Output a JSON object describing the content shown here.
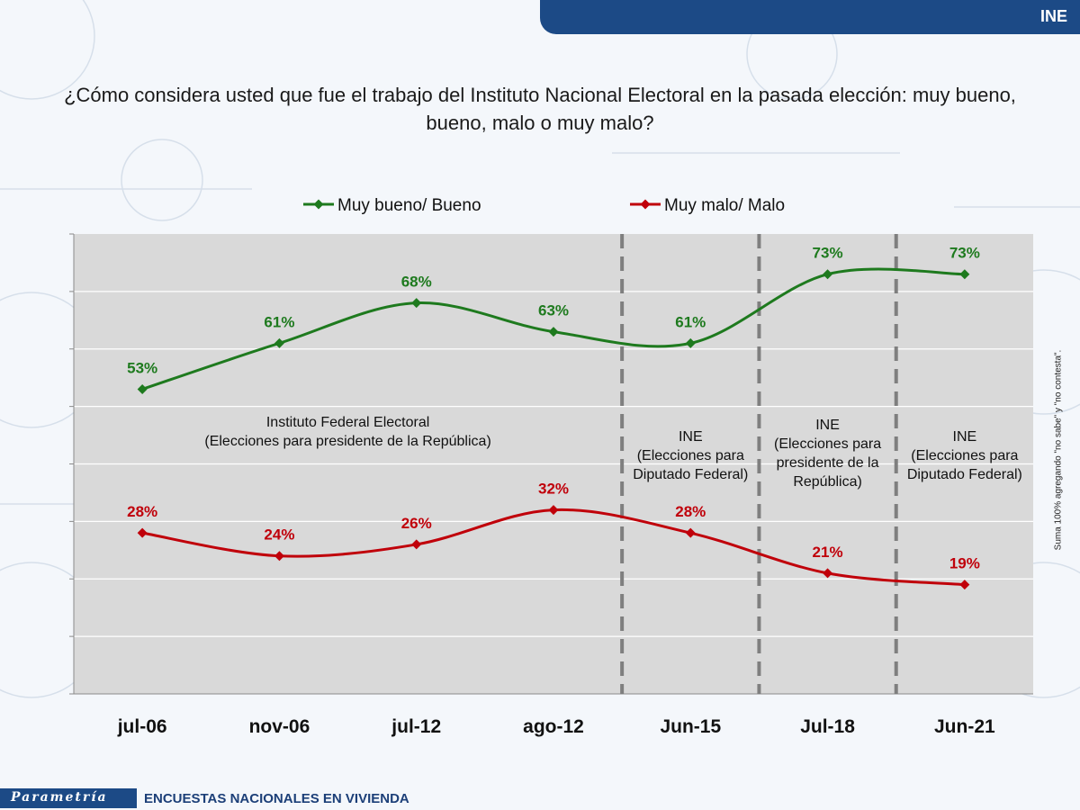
{
  "header": {
    "label": "INE"
  },
  "question": "¿Cómo considera usted que fue el trabajo del Instituto Nacional Electoral en la pasada elección: muy bueno, bueno, malo o muy malo?",
  "side_note": "Suma 100% agregando \"no sabe\" y \"no contesta\".",
  "footer": {
    "logo_text": "Parametría",
    "survey_label": "ENCUESTAS NACIONALES  EN VIVIENDA"
  },
  "colors": {
    "green": "#1e7a1e",
    "red": "#c0000a",
    "plot_bg": "#d9d9d9",
    "brand": "#1c4a86"
  },
  "chart_data": {
    "type": "line",
    "title": "",
    "xlabel": "",
    "ylabel": "",
    "ylim": [
      0,
      80
    ],
    "grid": true,
    "legend_position": "top-center",
    "categories": [
      "jul-06",
      "nov-06",
      "jul-12",
      "ago-12",
      "Jun-15",
      "Jul-18",
      "Jun-21"
    ],
    "series": [
      {
        "name": "Muy bueno/ Bueno",
        "color": "#1e7a1e",
        "values": [
          53,
          61,
          68,
          63,
          61,
          73,
          73
        ],
        "labels": [
          "53%",
          "61%",
          "68%",
          "63%",
          "61%",
          "73%",
          "73%"
        ]
      },
      {
        "name": "Muy malo/ Malo",
        "color": "#c0000a",
        "values": [
          28,
          24,
          26,
          32,
          28,
          21,
          19
        ],
        "labels": [
          "28%",
          "24%",
          "26%",
          "32%",
          "28%",
          "21%",
          "19%"
        ]
      }
    ],
    "annotations": [
      {
        "lines": [
          "Instituto Federal Electoral",
          "(Elecciones para presidente de la República)"
        ],
        "x_center": 1.5,
        "y_value": 46.5
      },
      {
        "lines": [
          "INE",
          "(Elecciones para",
          "Diputado Federal)"
        ],
        "x_center": 4,
        "y_value": 44
      },
      {
        "lines": [
          "INE",
          "(Elecciones para",
          "presidente de la",
          "República)"
        ],
        "x_center": 5,
        "y_value": 46
      },
      {
        "lines": [
          "INE",
          "(Elecciones para",
          "Diputado Federal)"
        ],
        "x_center": 6,
        "y_value": 44
      }
    ],
    "dividers": [
      3.5,
      4.5,
      5.5
    ]
  }
}
